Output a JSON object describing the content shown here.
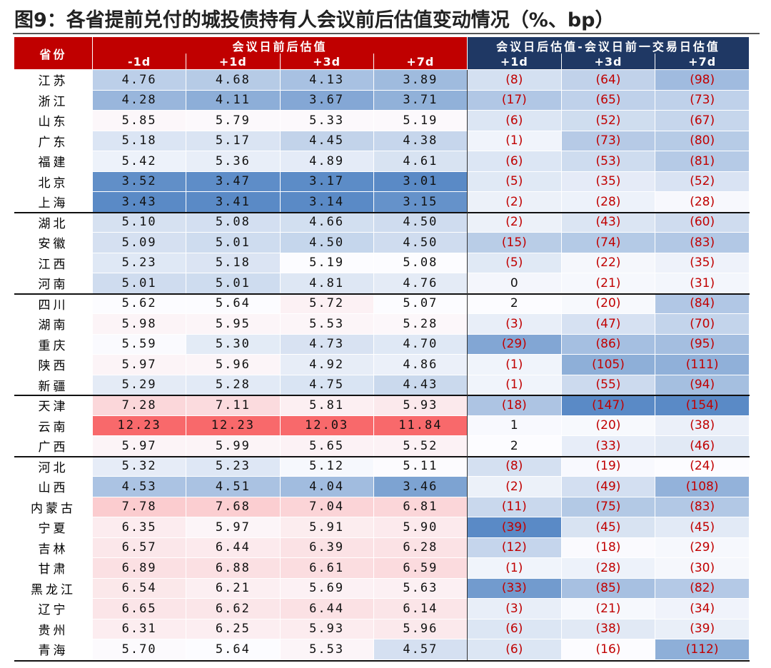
{
  "title": "图9：各省提前兑付的城投债持有人会议前后估值变动情况（%、bp）",
  "table": {
    "header": {
      "province": "省份",
      "left_group": "会议日前后估值",
      "right_group": "会议日后估值-会议日前一交易日估值",
      "left_cols": [
        "-1d",
        "+1d",
        "+3d",
        "+7d"
      ],
      "right_cols": [
        "+1d",
        "+3d",
        "+7d"
      ]
    },
    "rows": [
      [
        "江苏",
        "4.76",
        "4.68",
        "4.13",
        "3.89",
        "(8)",
        "(64)",
        "(98)"
      ],
      [
        "浙江",
        "4.28",
        "4.11",
        "3.67",
        "3.71",
        "(17)",
        "(65)",
        "(73)"
      ],
      [
        "山东",
        "5.85",
        "5.79",
        "5.33",
        "5.19",
        "(6)",
        "(52)",
        "(67)"
      ],
      [
        "广东",
        "5.18",
        "5.17",
        "4.45",
        "4.38",
        "(1)",
        "(73)",
        "(80)"
      ],
      [
        "福建",
        "5.42",
        "5.36",
        "4.89",
        "4.61",
        "(6)",
        "(53)",
        "(81)"
      ],
      [
        "北京",
        "3.52",
        "3.47",
        "3.17",
        "3.01",
        "(5)",
        "(35)",
        "(52)"
      ],
      [
        "上海",
        "3.43",
        "3.41",
        "3.14",
        "3.15",
        "(2)",
        "(28)",
        "(28)"
      ],
      [
        "湖北",
        "5.10",
        "5.08",
        "4.66",
        "4.50",
        "(2)",
        "(43)",
        "(60)"
      ],
      [
        "安徽",
        "5.09",
        "5.01",
        "4.50",
        "4.50",
        "(15)",
        "(74)",
        "(83)"
      ],
      [
        "江西",
        "5.23",
        "5.18",
        "5.19",
        "5.08",
        "(5)",
        "(22)",
        "(35)"
      ],
      [
        "河南",
        "5.01",
        "5.01",
        "4.81",
        "4.76",
        "0",
        "(21)",
        "(31)"
      ],
      [
        "四川",
        "5.62",
        "5.64",
        "5.72",
        "5.07",
        "2",
        "(20)",
        "(84)"
      ],
      [
        "湖南",
        "5.98",
        "5.95",
        "5.53",
        "5.28",
        "(3)",
        "(47)",
        "(70)"
      ],
      [
        "重庆",
        "5.59",
        "5.30",
        "4.73",
        "4.70",
        "(29)",
        "(86)",
        "(95)"
      ],
      [
        "陕西",
        "5.97",
        "5.96",
        "4.92",
        "4.86",
        "(1)",
        "(105)",
        "(111)"
      ],
      [
        "新疆",
        "5.29",
        "5.28",
        "4.75",
        "4.43",
        "(1)",
        "(55)",
        "(94)"
      ],
      [
        "天津",
        "7.28",
        "7.11",
        "5.81",
        "5.93",
        "(18)",
        "(147)",
        "(154)"
      ],
      [
        "云南",
        "12.23",
        "12.23",
        "12.03",
        "11.84",
        "1",
        "(20)",
        "(38)"
      ],
      [
        "广西",
        "5.97",
        "5.99",
        "5.65",
        "5.52",
        "2",
        "(33)",
        "(46)"
      ],
      [
        "河北",
        "5.32",
        "5.23",
        "5.12",
        "5.11",
        "(8)",
        "(19)",
        "(24)"
      ],
      [
        "山西",
        "4.53",
        "4.51",
        "4.04",
        "3.46",
        "(2)",
        "(49)",
        "(108)"
      ],
      [
        "内蒙古",
        "7.78",
        "7.68",
        "7.04",
        "6.81",
        "(11)",
        "(75)",
        "(83)"
      ],
      [
        "宁夏",
        "6.35",
        "5.97",
        "5.91",
        "5.90",
        "(39)",
        "(45)",
        "(45)"
      ],
      [
        "吉林",
        "6.57",
        "6.44",
        "6.39",
        "6.28",
        "(12)",
        "(18)",
        "(29)"
      ],
      [
        "甘肃",
        "6.89",
        "6.88",
        "6.61",
        "6.59",
        "(1)",
        "(28)",
        "(30)"
      ],
      [
        "黑龙江",
        "6.54",
        "6.21",
        "5.69",
        "5.63",
        "(33)",
        "(85)",
        "(82)"
      ],
      [
        "辽宁",
        "6.65",
        "6.62",
        "6.44",
        "6.14",
        "(3)",
        "(21)",
        "(34)"
      ],
      [
        "贵州",
        "6.31",
        "6.25",
        "5.93",
        "5.96",
        "(6)",
        "(38)",
        "(39)"
      ],
      [
        "青海",
        "5.70",
        "5.64",
        "5.53",
        "4.57",
        "(6)",
        "(16)",
        "(112)"
      ]
    ]
  }
}
